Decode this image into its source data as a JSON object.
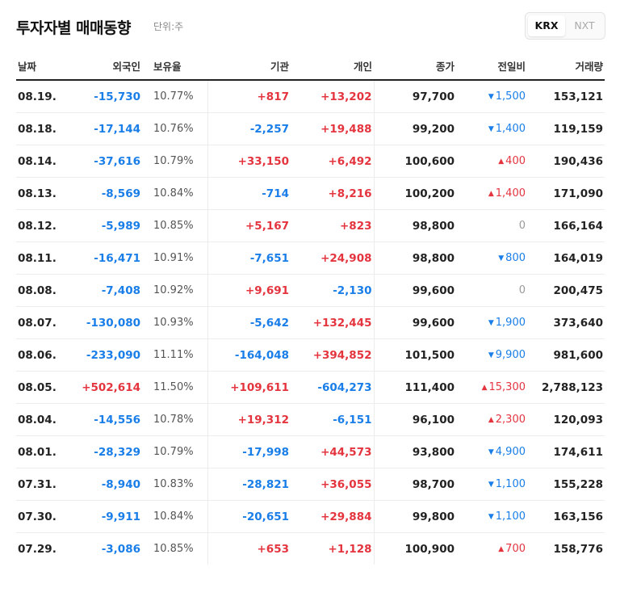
{
  "header": {
    "title": "투자자별 매매동향",
    "unit": "단위:주"
  },
  "tabs": [
    {
      "label": "KRX",
      "active": true
    },
    {
      "label": "NXT",
      "active": false
    }
  ],
  "columns": [
    "날짜",
    "외국인",
    "보유율",
    "기관",
    "개인",
    "종가",
    "전일비",
    "거래량"
  ],
  "colors": {
    "up": "#e4353f",
    "down": "#1a7ee8",
    "flat": "#999999"
  },
  "rows": [
    {
      "date": "08.19.",
      "foreign": "-15,730",
      "hold": "10.77%",
      "inst": "+817",
      "indiv": "+13,202",
      "close": "97,700",
      "chg_dir": "down",
      "chg": "1,500",
      "vol": "153,121"
    },
    {
      "date": "08.18.",
      "foreign": "-17,144",
      "hold": "10.76%",
      "inst": "-2,257",
      "indiv": "+19,488",
      "close": "99,200",
      "chg_dir": "down",
      "chg": "1,400",
      "vol": "119,159"
    },
    {
      "date": "08.14.",
      "foreign": "-37,616",
      "hold": "10.79%",
      "inst": "+33,150",
      "indiv": "+6,492",
      "close": "100,600",
      "chg_dir": "up",
      "chg": "400",
      "vol": "190,436"
    },
    {
      "date": "08.13.",
      "foreign": "-8,569",
      "hold": "10.84%",
      "inst": "-714",
      "indiv": "+8,216",
      "close": "100,200",
      "chg_dir": "up",
      "chg": "1,400",
      "vol": "171,090"
    },
    {
      "date": "08.12.",
      "foreign": "-5,989",
      "hold": "10.85%",
      "inst": "+5,167",
      "indiv": "+823",
      "close": "98,800",
      "chg_dir": "flat",
      "chg": "0",
      "vol": "166,164"
    },
    {
      "date": "08.11.",
      "foreign": "-16,471",
      "hold": "10.91%",
      "inst": "-7,651",
      "indiv": "+24,908",
      "close": "98,800",
      "chg_dir": "down",
      "chg": "800",
      "vol": "164,019"
    },
    {
      "date": "08.08.",
      "foreign": "-7,408",
      "hold": "10.92%",
      "inst": "+9,691",
      "indiv": "-2,130",
      "close": "99,600",
      "chg_dir": "flat",
      "chg": "0",
      "vol": "200,475"
    },
    {
      "date": "08.07.",
      "foreign": "-130,080",
      "hold": "10.93%",
      "inst": "-5,642",
      "indiv": "+132,445",
      "close": "99,600",
      "chg_dir": "down",
      "chg": "1,900",
      "vol": "373,640"
    },
    {
      "date": "08.06.",
      "foreign": "-233,090",
      "hold": "11.11%",
      "inst": "-164,048",
      "indiv": "+394,852",
      "close": "101,500",
      "chg_dir": "down",
      "chg": "9,900",
      "vol": "981,600"
    },
    {
      "date": "08.05.",
      "foreign": "+502,614",
      "hold": "11.50%",
      "inst": "+109,611",
      "indiv": "-604,273",
      "close": "111,400",
      "chg_dir": "up",
      "chg": "15,300",
      "vol": "2,788,123"
    },
    {
      "date": "08.04.",
      "foreign": "-14,556",
      "hold": "10.78%",
      "inst": "+19,312",
      "indiv": "-6,151",
      "close": "96,100",
      "chg_dir": "up",
      "chg": "2,300",
      "vol": "120,093"
    },
    {
      "date": "08.01.",
      "foreign": "-28,329",
      "hold": "10.79%",
      "inst": "-17,998",
      "indiv": "+44,573",
      "close": "93,800",
      "chg_dir": "down",
      "chg": "4,900",
      "vol": "174,611"
    },
    {
      "date": "07.31.",
      "foreign": "-8,940",
      "hold": "10.83%",
      "inst": "-28,821",
      "indiv": "+36,055",
      "close": "98,700",
      "chg_dir": "down",
      "chg": "1,100",
      "vol": "155,228"
    },
    {
      "date": "07.30.",
      "foreign": "-9,911",
      "hold": "10.84%",
      "inst": "-20,651",
      "indiv": "+29,884",
      "close": "99,800",
      "chg_dir": "down",
      "chg": "1,100",
      "vol": "163,156"
    },
    {
      "date": "07.29.",
      "foreign": "-3,086",
      "hold": "10.85%",
      "inst": "+653",
      "indiv": "+1,128",
      "close": "100,900",
      "chg_dir": "up",
      "chg": "700",
      "vol": "158,776"
    }
  ]
}
